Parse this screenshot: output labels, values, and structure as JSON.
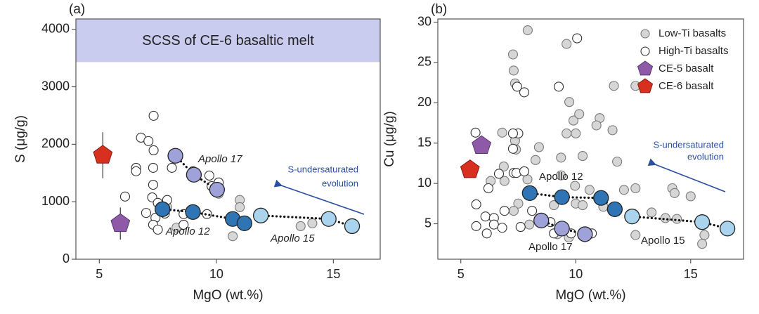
{
  "chart_data": [
    {
      "type": "scatter",
      "panel_label": "(a)",
      "xlabel": "MgO (wt.%)",
      "ylabel": "S (μg/g)",
      "xlim": [
        4,
        17
      ],
      "ylim": [
        0,
        4180
      ],
      "xticks": [
        5,
        10,
        15
      ],
      "yticks": [
        0,
        1000,
        2000,
        3000,
        4000
      ],
      "band": {
        "label": "SCSS of CE-6 basaltic melt",
        "range": [
          3430,
          4180
        ],
        "color": "#c9ccee"
      },
      "series": [
        {
          "marker": "circle",
          "color": "#d6d6d6",
          "edgecolor": "#7a7a7a",
          "x": [
            11.0,
            11.0,
            10.7,
            7.9,
            8.3,
            10.1,
            13.6,
            14.1
          ],
          "values": [
            1030,
            905,
            400,
            905,
            550,
            1140,
            575,
            625
          ]
        },
        {
          "marker": "circle",
          "color": "#ffffff",
          "edgecolor": "#333333",
          "x": [
            7.32,
            6.78,
            7.1,
            6.57,
            6.57,
            7.32,
            7.3,
            7.3,
            7.26,
            7.5,
            7.0,
            7.4,
            7.3,
            7.5,
            6.1,
            7.8,
            8.1,
            9.0,
            9.7,
            9.8,
            10.1,
            7.9,
            8.6,
            8.6,
            9.6
          ],
          "values": [
            2495,
            2115,
            2055,
            1590,
            1530,
            1895,
            1590,
            1295,
            1075,
            980,
            805,
            720,
            600,
            515,
            1090,
            795,
            1590,
            1530,
            1455,
            1270,
            1335,
            1030,
            785,
            600,
            785
          ]
        },
        {
          "marker": "pentagon",
          "color": "#8e5aa8",
          "edgecolor": "#5a3570",
          "x": [
            5.9
          ],
          "values": [
            620
          ],
          "errors": [
            280
          ]
        },
        {
          "marker": "pentagon",
          "color": "#d7301f",
          "edgecolor": "#8a1a10",
          "x": [
            5.15
          ],
          "values": [
            1810
          ],
          "errors": [
            400
          ]
        }
      ],
      "trends": [
        {
          "name": "Apollo 17",
          "color": "#9ea2d8",
          "x": [
            8.25,
            9.04,
            10.03
          ],
          "values": [
            1800,
            1470,
            1210
          ]
        },
        {
          "name": "Apollo 12",
          "color": "#2f74b5",
          "x": [
            7.7,
            9.0,
            10.7,
            11.2
          ],
          "values": [
            870,
            820,
            700,
            625
          ]
        },
        {
          "name": "Apollo 15",
          "color": "#aad4ee",
          "x": [
            11.9,
            14.8,
            15.8
          ],
          "values": [
            760,
            700,
            575
          ]
        }
      ],
      "trend_label_italic": true,
      "arrow_text": [
        "S-undersaturated",
        "evolution"
      ]
    },
    {
      "type": "scatter",
      "panel_label": "(b)",
      "xlabel": "MgO (wt.%)",
      "ylabel": "Cu (μg/g)",
      "xlim": [
        4,
        17.3
      ],
      "ylim": [
        0.6,
        30.4
      ],
      "xticks": [
        5,
        10,
        15
      ],
      "yticks": [
        5,
        10,
        15,
        20,
        25,
        30
      ],
      "legend": "upper right",
      "series": [
        {
          "name": "Low-Ti basalts",
          "marker": "circle",
          "color": "#d6d6d6",
          "edgecolor": "#7a7a7a",
          "x": [
            7.91,
            9.6,
            7.27,
            7.3,
            7.36,
            9.72,
            9.9,
            10.15,
            11.04,
            10.9,
            11.6,
            10.0,
            9.6,
            8.4,
            7.36,
            6.8,
            7.4,
            8.25,
            9.36,
            10.3,
            11.8,
            6.87,
            6.9,
            7.9,
            6.3,
            9.36,
            9.97,
            10.6,
            12.1,
            12.6,
            14.2,
            14.3,
            15.0,
            7.5,
            7.3,
            9.05,
            10.0,
            10.3,
            11.2,
            13.3,
            13.9,
            14.4,
            12.6,
            9.2,
            9.7,
            7.98,
            11.66,
            12.6,
            15.6,
            15.5
          ],
          "values": [
            29.0,
            27.3,
            26.0,
            24.0,
            22.4,
            20.1,
            17.8,
            18.6,
            18.1,
            17.2,
            16.6,
            16.2,
            16.2,
            14.5,
            15.3,
            16.3,
            14.2,
            12.9,
            13.2,
            13.4,
            12.7,
            12.1,
            10.3,
            10.5,
            10.3,
            11.0,
            9.7,
            9.2,
            9.2,
            9.4,
            9.4,
            8.8,
            8.4,
            7.5,
            6.6,
            7.3,
            7.5,
            7.3,
            7.1,
            6.4,
            5.7,
            5.6,
            3.6,
            3.7,
            3.3,
            4.9,
            22.1,
            22.1,
            3.6,
            2.5
          ]
        },
        {
          "name": "High-Ti basalts",
          "marker": "circle",
          "color": "#ffffff",
          "edgecolor": "#333333",
          "x": [
            10.06,
            7.45,
            9.26,
            7.76,
            7.5,
            7.27,
            5.64,
            7.27,
            7.3,
            7.42,
            7.76,
            6.66,
            6.2,
            5.67,
            6.07,
            6.44,
            6.9,
            6.44,
            5.67,
            6.8,
            6.13,
            7.6,
            8.1,
            8.9,
            9.05,
            9.8,
            10.7
          ],
          "values": [
            28.0,
            22.0,
            22.0,
            21.3,
            16.2,
            16.2,
            16.3,
            14.3,
            11.3,
            11.3,
            11.5,
            11.2,
            9.4,
            7.4,
            5.9,
            5.7,
            6.6,
            4.9,
            4.7,
            4.5,
            3.8,
            4.6,
            6.6,
            5.2,
            3.8,
            3.8,
            3.8
          ]
        },
        {
          "name": "CE-5 basalt",
          "marker": "pentagon",
          "color": "#8e5aa8",
          "edgecolor": "#5a3570",
          "x": [
            5.9
          ],
          "values": [
            14.7
          ]
        },
        {
          "name": "CE-6 basalt",
          "marker": "pentagon",
          "color": "#d7301f",
          "edgecolor": "#8a1a10",
          "x": [
            5.4
          ],
          "values": [
            11.7
          ]
        }
      ],
      "trends": [
        {
          "name": "Apollo 17",
          "color": "#9ea2d8",
          "x": [
            8.5,
            9.4,
            10.4
          ],
          "values": [
            5.4,
            4.4,
            3.7
          ]
        },
        {
          "name": "Apollo 12",
          "color": "#2f74b5",
          "x": [
            8.0,
            9.4,
            11.1,
            11.7
          ],
          "values": [
            8.8,
            8.3,
            8.2,
            6.8
          ]
        },
        {
          "name": "Apollo 15",
          "color": "#aad4ee",
          "x": [
            12.45,
            15.5,
            16.6
          ],
          "values": [
            5.9,
            5.2,
            4.4
          ]
        }
      ],
      "trend_label_italic": false,
      "arrow_text": [
        "S-undersaturated",
        "evolution"
      ]
    }
  ]
}
